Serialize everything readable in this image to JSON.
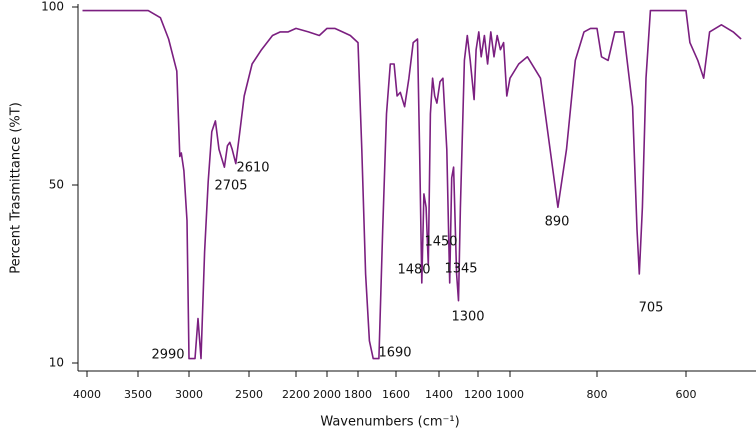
{
  "chart_data": {
    "type": "line",
    "x_label": "Wavenumbers (cm⁻¹)",
    "y_label": "Percent Trasmittance (%T)",
    "color": "#7b1f80",
    "xlim": [
      4080,
      450
    ],
    "xticks": [
      4000,
      3500,
      3000,
      2500,
      2200,
      2000,
      1800,
      1600,
      1400,
      1200,
      1000,
      800,
      600
    ],
    "ylim": [
      10,
      100
    ],
    "yticks": [
      10,
      50,
      100
    ],
    "annotations": [
      "2990",
      "2705",
      "2610",
      "1690",
      "1480",
      "1450",
      "1345",
      "1300",
      "890",
      "705"
    ],
    "x": [
      4040,
      3400,
      3280,
      3200,
      3120,
      3090,
      3075,
      3050,
      3020,
      3000,
      2950,
      2925,
      2900,
      2870,
      2840,
      2810,
      2780,
      2750,
      2705,
      2680,
      2660,
      2640,
      2610,
      2580,
      2540,
      2480,
      2420,
      2350,
      2300,
      2250,
      2200,
      2120,
      2050,
      2000,
      1950,
      1900,
      1850,
      1800,
      1780,
      1760,
      1740,
      1720,
      1690,
      1670,
      1650,
      1630,
      1610,
      1595,
      1580,
      1560,
      1540,
      1520,
      1500,
      1490,
      1480,
      1470,
      1460,
      1450,
      1440,
      1430,
      1420,
      1410,
      1395,
      1380,
      1360,
      1345,
      1335,
      1325,
      1310,
      1300,
      1290,
      1270,
      1255,
      1240,
      1220,
      1210,
      1195,
      1180,
      1160,
      1140,
      1120,
      1100,
      1080,
      1060,
      1040,
      1020,
      1000,
      980,
      960,
      930,
      890,
      870,
      850,
      830,
      815,
      800,
      790,
      775,
      760,
      740,
      720,
      710,
      705,
      698,
      690,
      680,
      640,
      620,
      600,
      590,
      570,
      555,
      540,
      510,
      480,
      460
    ],
    "values": [
      99,
      99,
      97,
      91,
      82,
      58,
      59,
      54,
      42,
      11,
      11,
      20,
      11,
      35,
      51,
      65,
      68,
      60,
      55,
      61,
      62,
      60,
      56,
      64,
      75,
      84,
      88,
      92,
      93,
      93,
      94,
      93,
      92,
      94,
      94,
      93,
      92,
      90,
      60,
      30,
      15,
      11,
      11,
      40,
      70,
      84,
      84,
      75,
      76,
      72,
      80,
      90,
      91,
      60,
      28,
      48,
      45,
      32,
      70,
      80,
      75,
      73,
      79,
      80,
      60,
      28,
      52,
      55,
      30,
      24,
      45,
      85,
      92,
      85,
      74,
      88,
      93,
      86,
      92,
      84,
      93,
      86,
      92,
      88,
      90,
      75,
      80,
      84,
      86,
      80,
      45,
      60,
      85,
      93,
      94,
      94,
      86,
      85,
      93,
      93,
      72,
      40,
      30,
      45,
      80,
      99,
      99,
      99,
      99,
      90,
      85,
      80,
      93,
      95,
      93,
      91
    ]
  }
}
